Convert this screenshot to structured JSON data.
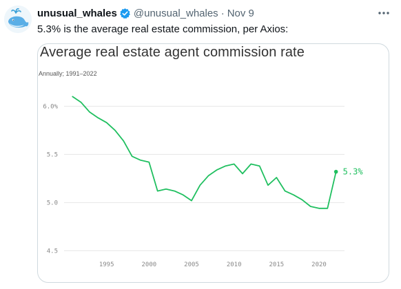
{
  "tweet": {
    "display_name": "unusual_whales",
    "handle": "@unusual_whales",
    "separator": "·",
    "date": "Nov 9",
    "text": "5.3% is the average real estate commission, per Axios:",
    "verified": true,
    "icons": {
      "avatar": "whale-avatar-icon",
      "verified": "verified-badge-icon",
      "more": "more-options-icon"
    },
    "colors": {
      "verified": "#1d9bf0",
      "secondary_text": "#536471"
    }
  },
  "chart_data": {
    "type": "line",
    "title": "Average real estate agent commission rate",
    "subtitle": "Annually; 1991–2022",
    "xlabel": "",
    "ylabel": "",
    "xlim": [
      1990,
      2023
    ],
    "ylim": [
      4.5,
      6.2
    ],
    "grid": true,
    "line_color": "#1fbf5f",
    "y_ticks": [
      {
        "value": 6.0,
        "label": "6.0%"
      },
      {
        "value": 5.5,
        "label": "5.5"
      },
      {
        "value": 5.0,
        "label": "5.0"
      },
      {
        "value": 4.5,
        "label": "4.5"
      }
    ],
    "x_ticks": [
      {
        "value": 1995,
        "label": "1995"
      },
      {
        "value": 2000,
        "label": "2000"
      },
      {
        "value": 2005,
        "label": "2005"
      },
      {
        "value": 2010,
        "label": "2010"
      },
      {
        "value": 2015,
        "label": "2015"
      },
      {
        "value": 2020,
        "label": "2020"
      }
    ],
    "series": [
      {
        "x": [
          1991,
          1992,
          1993,
          1994,
          1995,
          1996,
          1997,
          1998,
          1999,
          2000,
          2001,
          2002,
          2003,
          2004,
          2005,
          2006,
          2007,
          2008,
          2009,
          2010,
          2011,
          2012,
          2013,
          2014,
          2015,
          2016,
          2017,
          2018,
          2019,
          2020,
          2021,
          2022
        ],
        "values": [
          6.1,
          6.04,
          5.94,
          5.88,
          5.83,
          5.75,
          5.64,
          5.48,
          5.44,
          5.42,
          5.12,
          5.14,
          5.12,
          5.08,
          5.02,
          5.18,
          5.28,
          5.34,
          5.38,
          5.4,
          5.3,
          5.4,
          5.38,
          5.18,
          5.26,
          5.12,
          5.08,
          5.03,
          4.96,
          4.94,
          4.94,
          5.32
        ]
      }
    ],
    "end_label": "5.3%"
  }
}
